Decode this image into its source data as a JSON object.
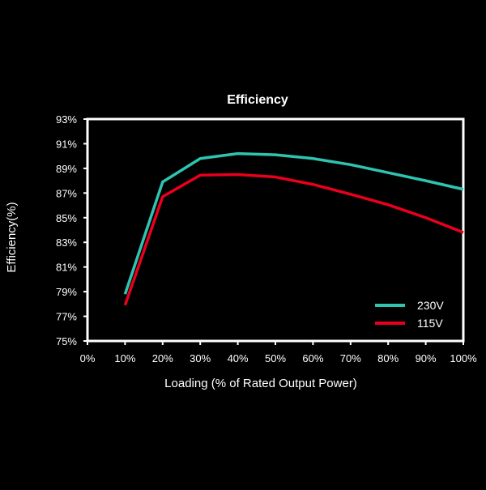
{
  "chart_data": {
    "type": "line",
    "title": "Efficiency",
    "xlabel": "Loading (% of Rated Output Power)",
    "ylabel": "Efficiency(%)",
    "x": [
      10,
      20,
      30,
      40,
      50,
      60,
      70,
      80,
      90,
      100
    ],
    "xlim": [
      0,
      100
    ],
    "ylim": [
      75,
      93
    ],
    "xticks": [
      "0%",
      "10%",
      "20%",
      "30%",
      "40%",
      "50%",
      "60%",
      "70%",
      "80%",
      "90%",
      "100%"
    ],
    "yticks": [
      "75%",
      "77%",
      "79%",
      "81%",
      "83%",
      "85%",
      "87%",
      "89%",
      "91%",
      "93%"
    ],
    "grid": false,
    "legend_position": "bottom-right",
    "series": [
      {
        "name": "230V",
        "color": "#2ec4b0",
        "values": [
          78.8,
          87.9,
          89.8,
          90.2,
          90.1,
          89.8,
          89.3,
          88.65,
          88.0,
          87.3
        ]
      },
      {
        "name": "115V",
        "color": "#e8001c",
        "values": [
          77.9,
          86.7,
          88.45,
          88.5,
          88.3,
          87.7,
          86.9,
          86.05,
          85.0,
          83.8
        ]
      }
    ]
  }
}
